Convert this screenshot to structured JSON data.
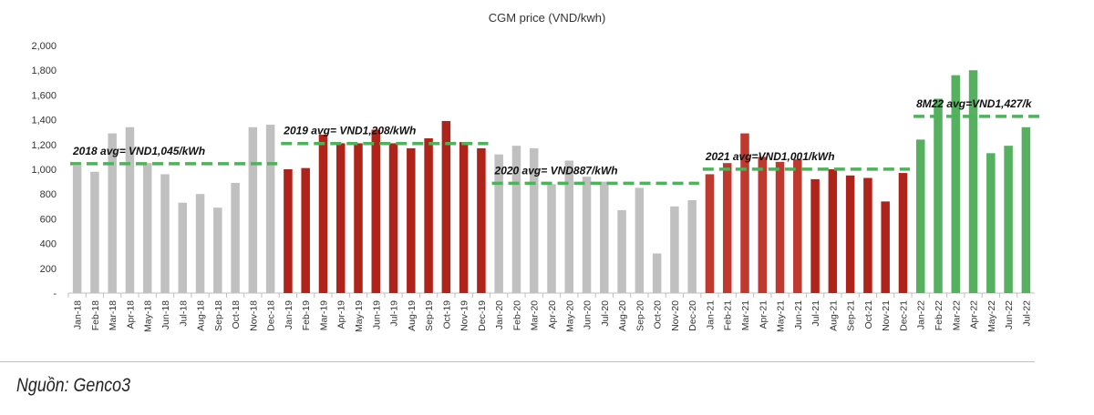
{
  "chart_data": {
    "type": "bar",
    "title": "CGM price (VND/kwh)",
    "xlabel": "",
    "ylabel": "",
    "ylim": [
      0,
      2000
    ],
    "yticks": [
      "-",
      "200",
      "400",
      "600",
      "800",
      "1,000",
      "1,200",
      "1,400",
      "1,600",
      "1,800",
      "2,000"
    ],
    "categories": [
      "Jan-18",
      "Feb-18",
      "Mar-18",
      "Apr-18",
      "May-18",
      "Jun-18",
      "Jul-18",
      "Aug-18",
      "Sep-18",
      "Oct-18",
      "Nov-18",
      "Dec-18",
      "Jan-19",
      "Feb-19",
      "Mar-19",
      "Apr-19",
      "May-19",
      "Jun-19",
      "Jul-19",
      "Aug-19",
      "Sep-19",
      "Oct-19",
      "Nov-19",
      "Dec-19",
      "Jan-20",
      "Feb-20",
      "Mar-20",
      "Apr-20",
      "May-20",
      "Jun-20",
      "Jul-20",
      "Aug-20",
      "Sep-20",
      "Oct-20",
      "Nov-20",
      "Dec-20",
      "Jan-21",
      "Feb-21",
      "Mar-21",
      "Apr-21",
      "May-21",
      "Jun-21",
      "Jul-21",
      "Aug-21",
      "Sep-21",
      "Oct-21",
      "Nov-21",
      "Dec-21",
      "Jan-22",
      "Feb-22",
      "Mar-22",
      "Apr-22",
      "May-22",
      "Jun-22",
      "Jul-22"
    ],
    "values": [
      1030,
      980,
      1290,
      1340,
      1050,
      960,
      730,
      800,
      690,
      890,
      1340,
      1360,
      1000,
      1010,
      1280,
      1210,
      1210,
      1320,
      1210,
      1170,
      1250,
      1390,
      1220,
      1170,
      1120,
      1190,
      1170,
      880,
      1070,
      940,
      900,
      670,
      850,
      320,
      700,
      750,
      960,
      1050,
      1290,
      1100,
      1060,
      1080,
      920,
      1000,
      950,
      930,
      740,
      970,
      1240,
      1570,
      1760,
      1800,
      1130,
      1190,
      1340
    ],
    "groups": [
      {
        "year": "2018",
        "start": 0,
        "end": 11,
        "color": "#c0c0c0",
        "avg": 1045,
        "label": "2018 avg= VND1,045/kWh"
      },
      {
        "year": "2019",
        "start": 12,
        "end": 23,
        "color": "#b0231a",
        "avg": 1208,
        "label": "2019 avg= VND1,208/kWh"
      },
      {
        "year": "2020",
        "start": 24,
        "end": 35,
        "color": "#c0c0c0",
        "avg": 887,
        "label": "2020 avg= VND887/kWh"
      },
      {
        "year": "2021",
        "start": 36,
        "end": 47,
        "color": "#c0392f",
        "avg": 1001,
        "label": "2021 avg=VND1,001/kWh"
      },
      {
        "year": "2022",
        "start": 48,
        "end": 54,
        "color": "#55b05f",
        "avg": 1427,
        "label": "8M22 avg=VND1,427/k"
      }
    ],
    "avg_line_color": "#4db35a",
    "grid": false
  },
  "source": "Nguồn: Genco3"
}
